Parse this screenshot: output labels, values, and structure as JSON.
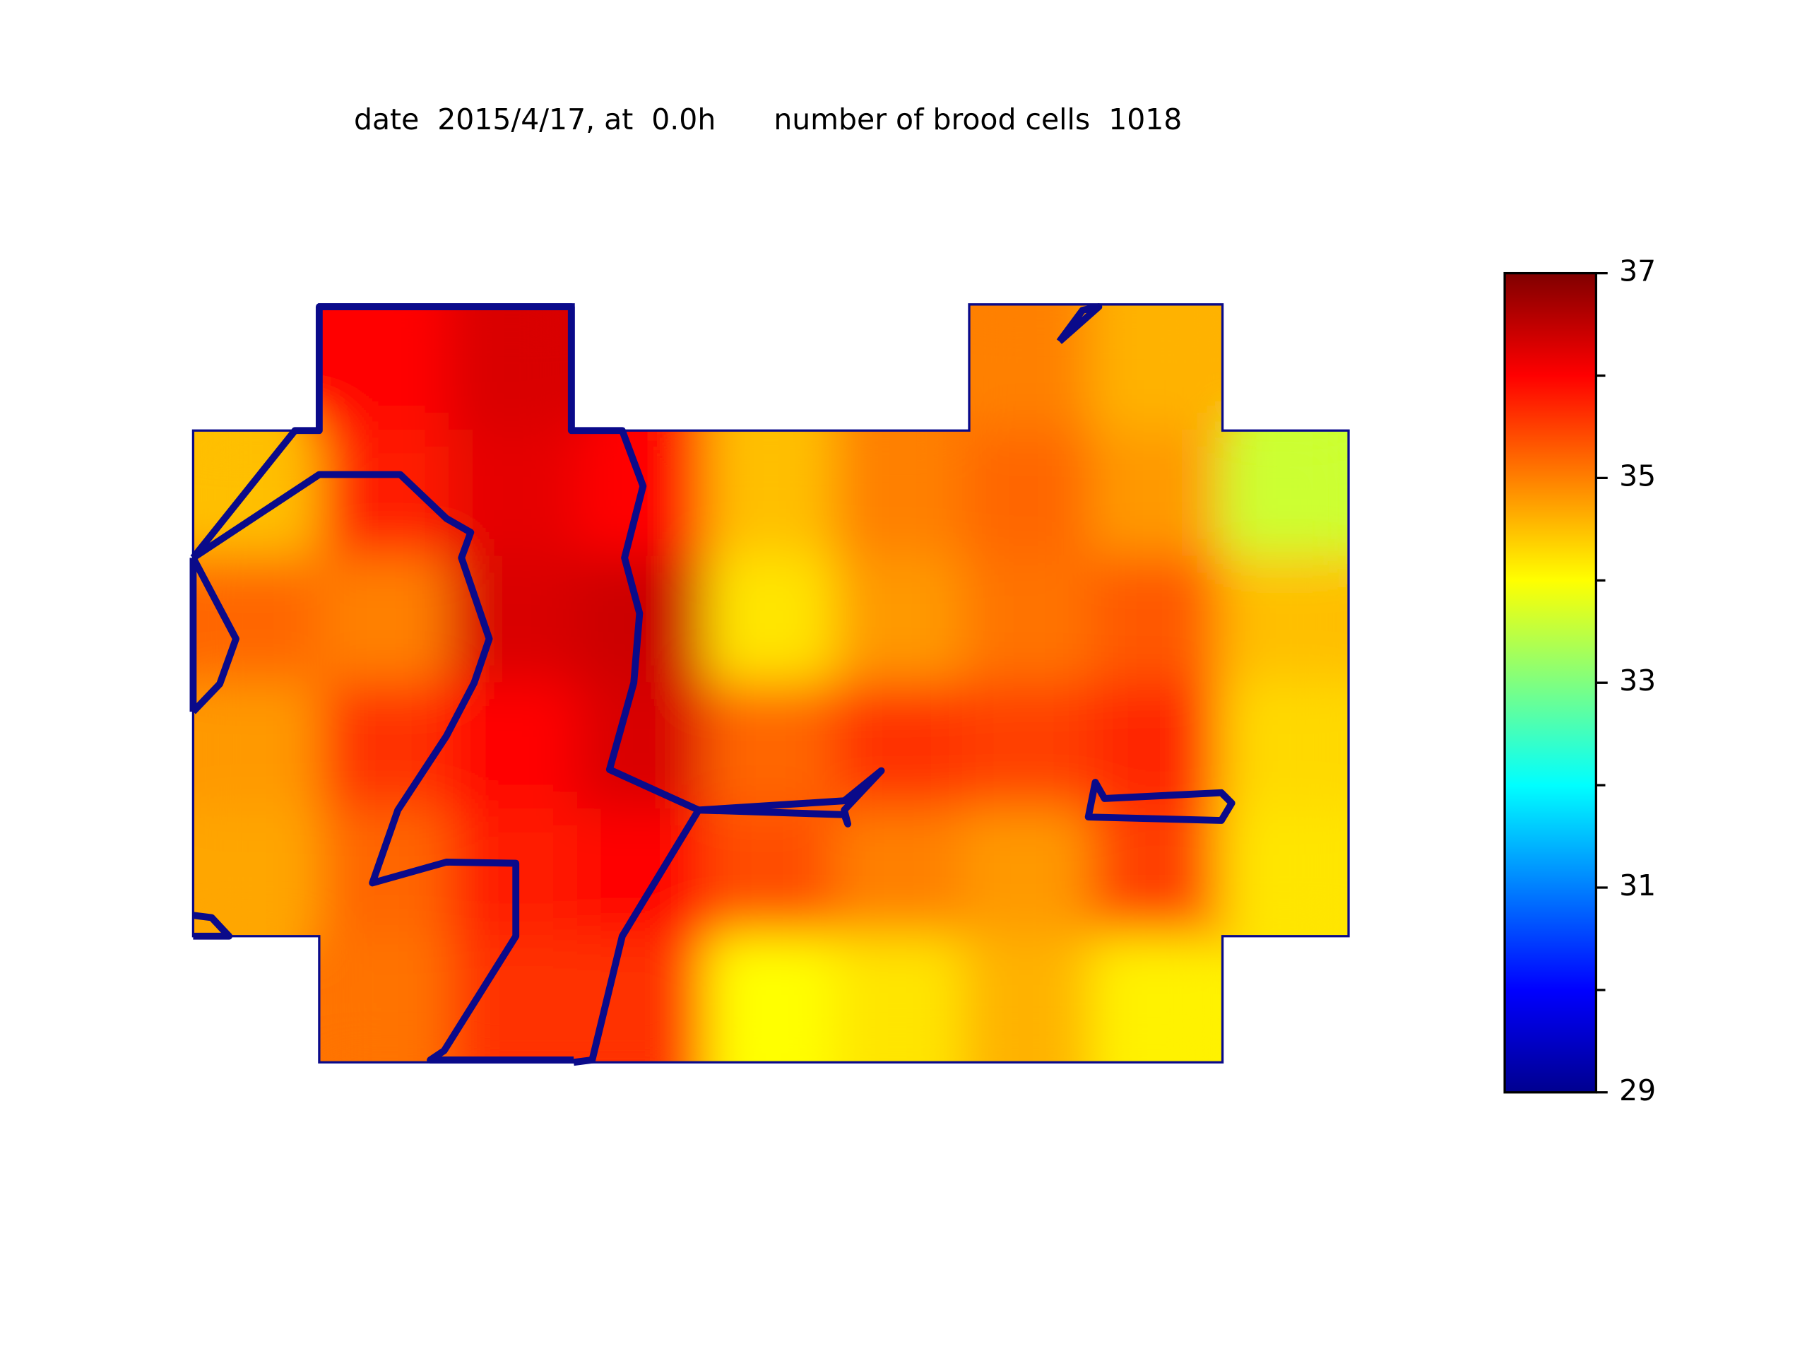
{
  "chart_data": {
    "type": "heatmap",
    "title": "date  2015/4/17, at  0.0h",
    "subtitle": "number of brood cells  1018",
    "colormap": "jet",
    "clim": [
      29,
      37
    ],
    "cticks": [
      29,
      31,
      33,
      35,
      37
    ],
    "cminor_ticks": [
      30,
      32,
      34,
      36
    ],
    "values": [
      [
        null,
        36.0,
        36.3,
        null,
        null,
        null,
        35.0,
        34.6,
        null
      ],
      [
        34.5,
        35.8,
        36.2,
        36.0,
        34.5,
        35.0,
        35.2,
        34.8,
        33.6
      ],
      [
        35.2,
        35.0,
        36.3,
        36.4,
        34.2,
        34.8,
        35.1,
        35.3,
        34.5
      ],
      [
        34.8,
        35.6,
        36.0,
        36.3,
        35.2,
        35.6,
        35.5,
        35.7,
        34.3
      ],
      [
        34.7,
        35.2,
        35.8,
        36.0,
        35.4,
        35.0,
        34.8,
        35.5,
        34.2
      ],
      [
        null,
        35.1,
        35.6,
        35.6,
        34.0,
        34.2,
        34.6,
        34.1,
        null
      ]
    ]
  }
}
